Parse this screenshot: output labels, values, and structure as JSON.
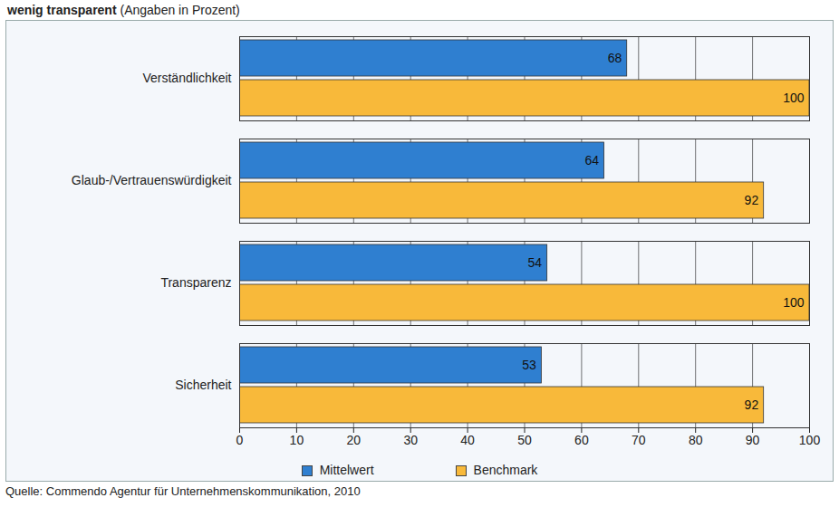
{
  "chart_data": {
    "type": "bar",
    "title": "wenig transparent",
    "subtitle": "(Angaben in Prozent)",
    "caption": "Quelle: Commendo Agentur für Unternehmenskommunikation, 2010",
    "orientation": "horizontal",
    "categories": [
      "Verständlichkeit",
      "Glaub-/Vertrauenswürdigkeit",
      "Transparenz",
      "Sicherheit"
    ],
    "series": [
      {
        "name": "Mittelwert",
        "color": "#2f7fd0",
        "values": [
          68,
          64,
          54,
          53
        ]
      },
      {
        "name": "Benchmark",
        "color": "#f8b93a",
        "values": [
          100,
          92,
          100,
          92
        ]
      }
    ],
    "xlim": [
      0,
      100
    ],
    "xticks": [
      0,
      10,
      20,
      30,
      40,
      50,
      60,
      70,
      80,
      90,
      100
    ],
    "grid": true,
    "data_labels": true,
    "legend": "bottom"
  }
}
